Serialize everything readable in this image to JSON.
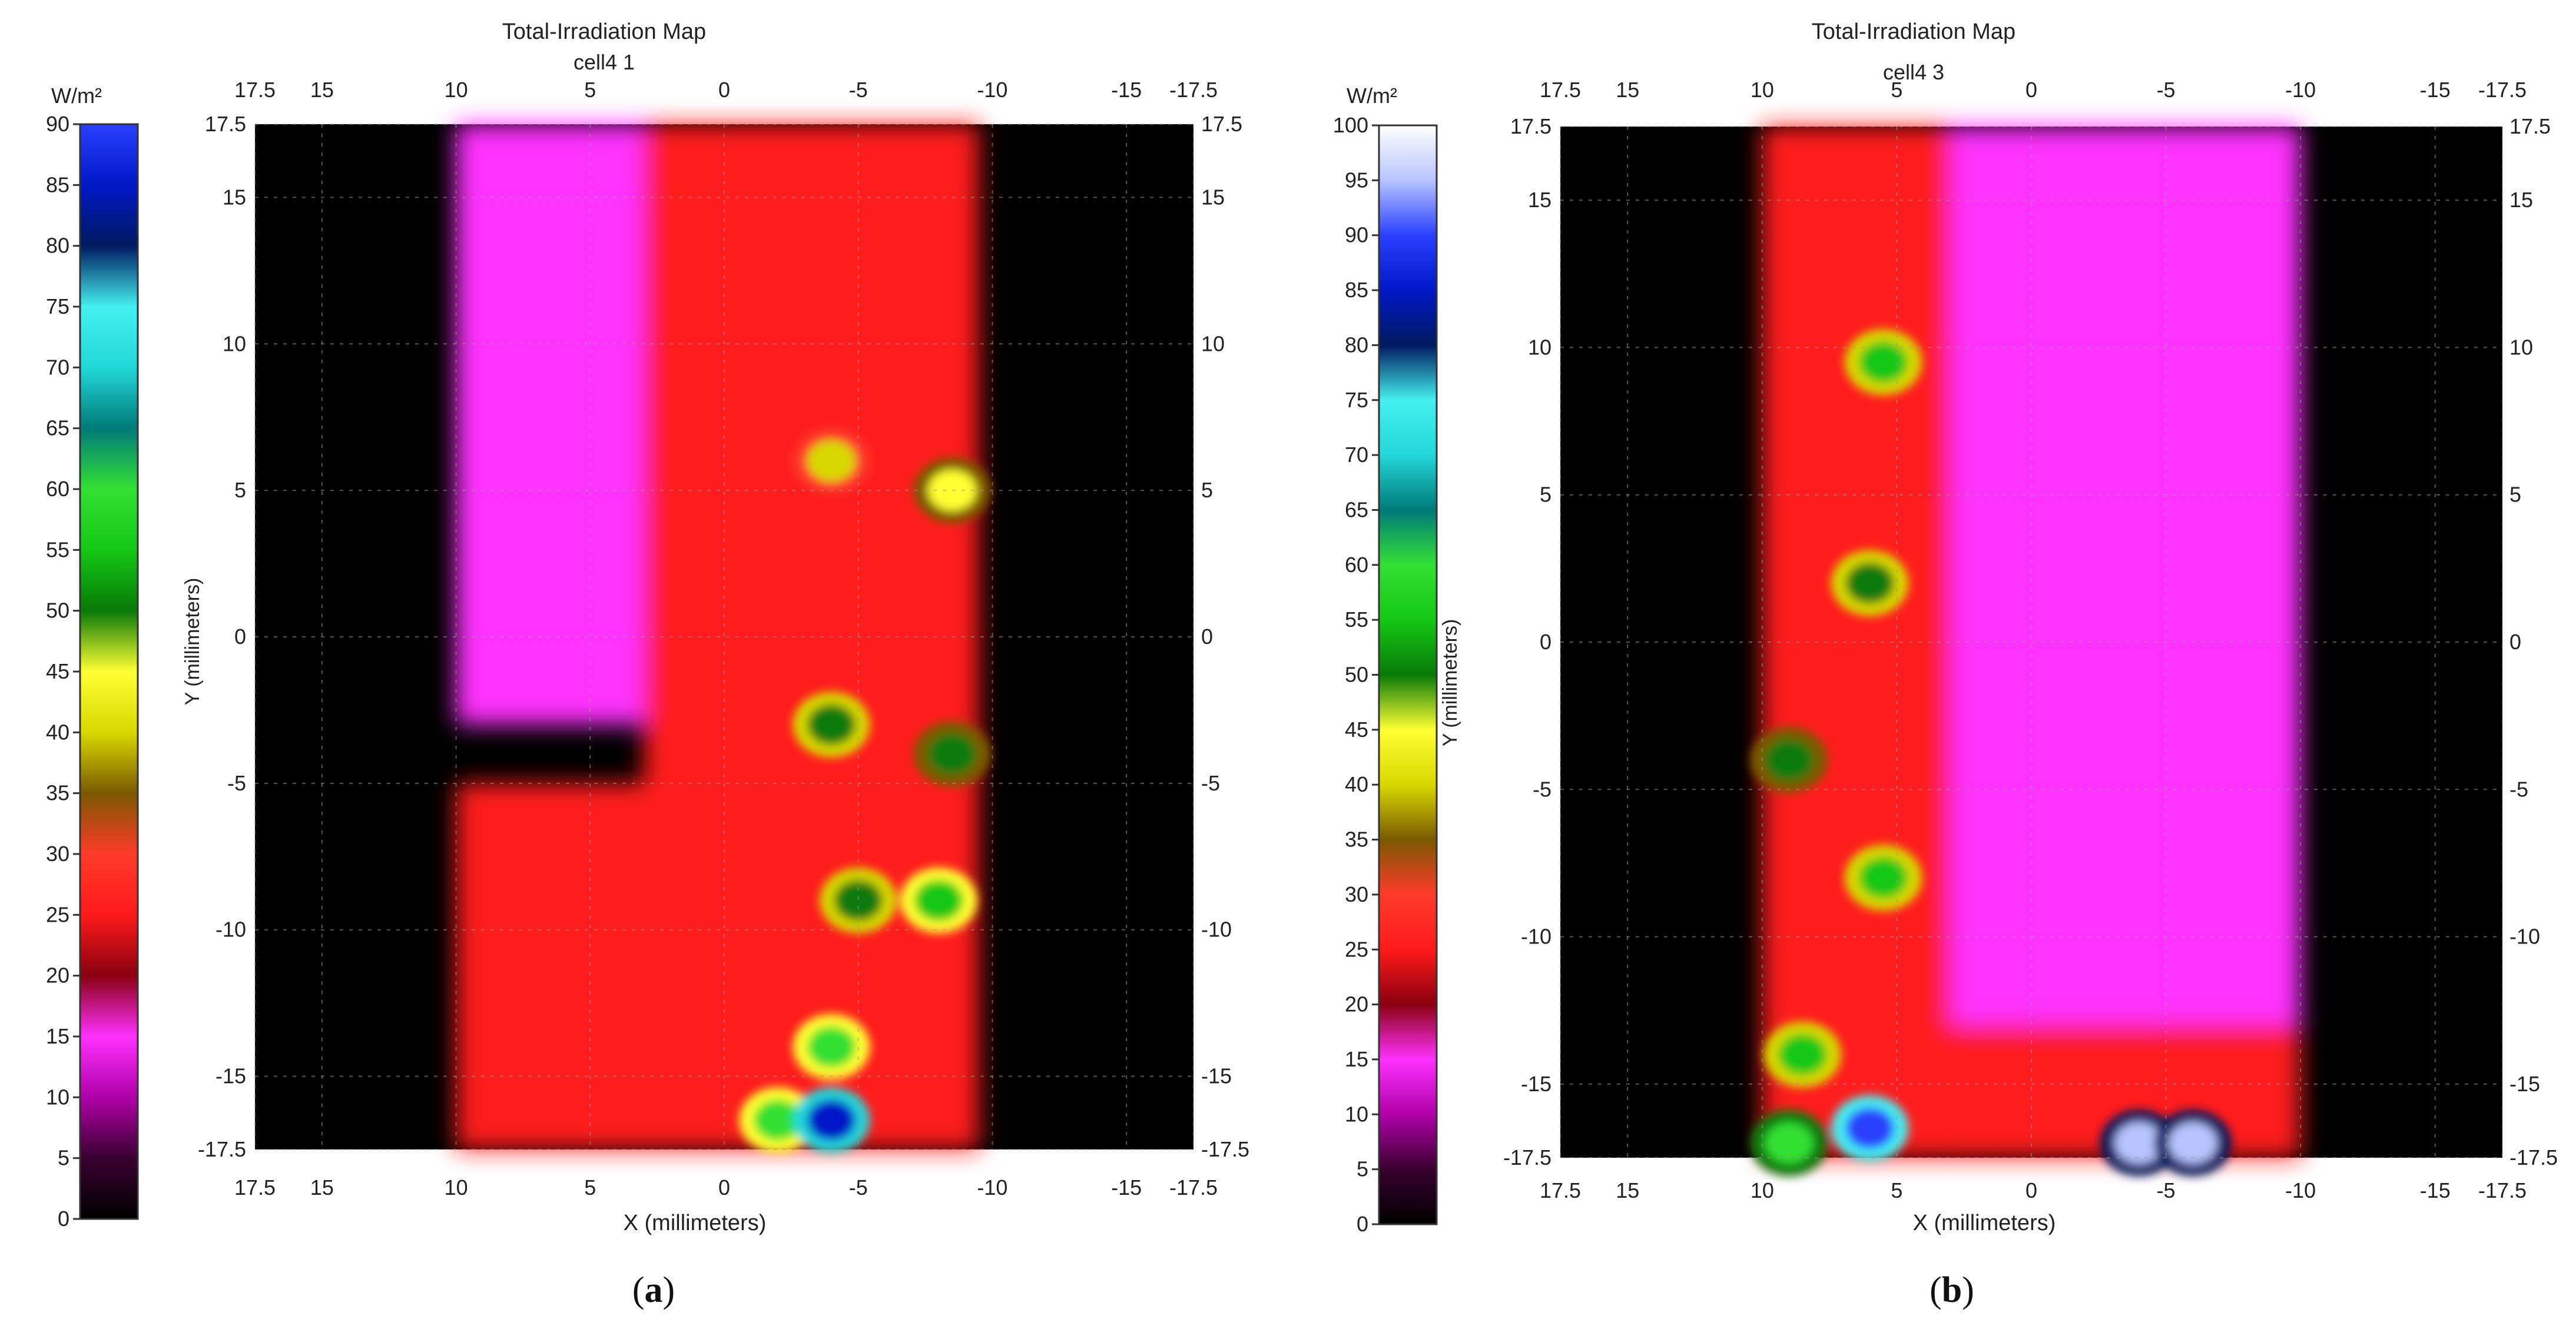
{
  "chart_data": [
    {
      "type": "heatmap",
      "title": "Total-Irradiation Map",
      "subtitle": "cell4 1",
      "panel_label": "a",
      "xlabel": "X (millimeters)",
      "ylabel": "Y (millimeters)",
      "colorbar_label": "W/m²",
      "xlim": [
        17.5,
        -17.5
      ],
      "ylim": [
        -17.5,
        17.5
      ],
      "x_ticks": [
        "17.5",
        "15",
        "10",
        "5",
        "0",
        "-5",
        "-10",
        "-15",
        "-17.5"
      ],
      "x_tick_values": [
        17.5,
        15,
        10,
        5,
        0,
        -5,
        -10,
        -15,
        -17.5
      ],
      "y_ticks": [
        "17.5",
        "15",
        "10",
        "5",
        "0",
        "-5",
        "-10",
        "-15",
        "-17.5"
      ],
      "y_tick_values": [
        17.5,
        15,
        10,
        5,
        0,
        -5,
        -10,
        -15,
        -17.5
      ],
      "colorbar_range": [
        0,
        90
      ],
      "colorbar_ticks": [
        0,
        5,
        10,
        15,
        20,
        25,
        30,
        35,
        40,
        45,
        50,
        55,
        60,
        65,
        70,
        75,
        80,
        85,
        90
      ],
      "grid": true,
      "illuminated_x_range": [
        10,
        -9.5
      ],
      "regions": [
        {
          "kind": "zone",
          "x": [
            10,
            3
          ],
          "y": [
            17.5,
            -3
          ],
          "level": 15
        },
        {
          "kind": "zone",
          "x": [
            10,
            3
          ],
          "y": [
            -5,
            -17.5
          ],
          "level": 25
        },
        {
          "kind": "zone",
          "x": [
            3,
            -9.5
          ],
          "y": [
            17.5,
            -17.5
          ],
          "level": 27
        },
        {
          "kind": "spot",
          "x": -4,
          "y": 6,
          "level": 42
        },
        {
          "kind": "spot",
          "x": -8.5,
          "y": 5,
          "level": 48
        },
        {
          "kind": "spot",
          "x": -4,
          "y": -3,
          "level": 52
        },
        {
          "kind": "spot",
          "x": -8.5,
          "y": -4,
          "level": 50
        },
        {
          "kind": "spot",
          "x": -5,
          "y": -9,
          "level": 52
        },
        {
          "kind": "spot",
          "x": -8,
          "y": -9,
          "level": 58
        },
        {
          "kind": "spot",
          "x": -4,
          "y": -14,
          "level": 60
        },
        {
          "kind": "spot",
          "x": -2,
          "y": -16.5,
          "level": 60
        },
        {
          "kind": "spot",
          "x": -4,
          "y": -16.5,
          "level": 85
        }
      ]
    },
    {
      "type": "heatmap",
      "title": "Total-Irradiation Map",
      "subtitle": "cell4 3",
      "panel_label": "b",
      "xlabel": "X (millimeters)",
      "ylabel": "Y (millimeters)",
      "colorbar_label": "W/m²",
      "xlim": [
        17.5,
        -17.5
      ],
      "ylim": [
        -17.5,
        17.5
      ],
      "x_ticks": [
        "17.5",
        "15",
        "10",
        "5",
        "0",
        "-5",
        "-10",
        "-15",
        "-17.5"
      ],
      "x_tick_values": [
        17.5,
        15,
        10,
        5,
        0,
        -5,
        -10,
        -15,
        -17.5
      ],
      "y_ticks": [
        "17.5",
        "15",
        "10",
        "5",
        "0",
        "-5",
        "-10",
        "-15",
        "-17.5"
      ],
      "y_tick_values": [
        17.5,
        15,
        10,
        5,
        0,
        -5,
        -10,
        -15,
        -17.5
      ],
      "colorbar_range": [
        0,
        100
      ],
      "colorbar_ticks": [
        0,
        5,
        10,
        15,
        20,
        25,
        30,
        35,
        40,
        45,
        50,
        55,
        60,
        65,
        70,
        75,
        80,
        85,
        90,
        95,
        100
      ],
      "grid": true,
      "illuminated_x_range": [
        10,
        -10
      ],
      "regions": [
        {
          "kind": "zone",
          "x": [
            10,
            3
          ],
          "y": [
            17.5,
            -17.5
          ],
          "level": 27
        },
        {
          "kind": "zone",
          "x": [
            3,
            -10
          ],
          "y": [
            17.5,
            -13
          ],
          "level": 15
        },
        {
          "kind": "zone",
          "x": [
            3,
            -10
          ],
          "y": [
            -13,
            -17.5
          ],
          "level": 25
        },
        {
          "kind": "spot",
          "x": 5.5,
          "y": 9.5,
          "level": 55
        },
        {
          "kind": "spot",
          "x": 6,
          "y": 2,
          "level": 52
        },
        {
          "kind": "spot",
          "x": 9,
          "y": -4,
          "level": 50
        },
        {
          "kind": "spot",
          "x": 5.5,
          "y": -8,
          "level": 55
        },
        {
          "kind": "spot",
          "x": 8.5,
          "y": -14,
          "level": 55
        },
        {
          "kind": "spot",
          "x": 6,
          "y": -16.5,
          "level": 90
        },
        {
          "kind": "spot",
          "x": 9,
          "y": -17,
          "level": 62
        },
        {
          "kind": "spot",
          "x": -4,
          "y": -17,
          "level": 95
        },
        {
          "kind": "spot",
          "x": -6,
          "y": -17,
          "level": 95
        }
      ]
    }
  ]
}
